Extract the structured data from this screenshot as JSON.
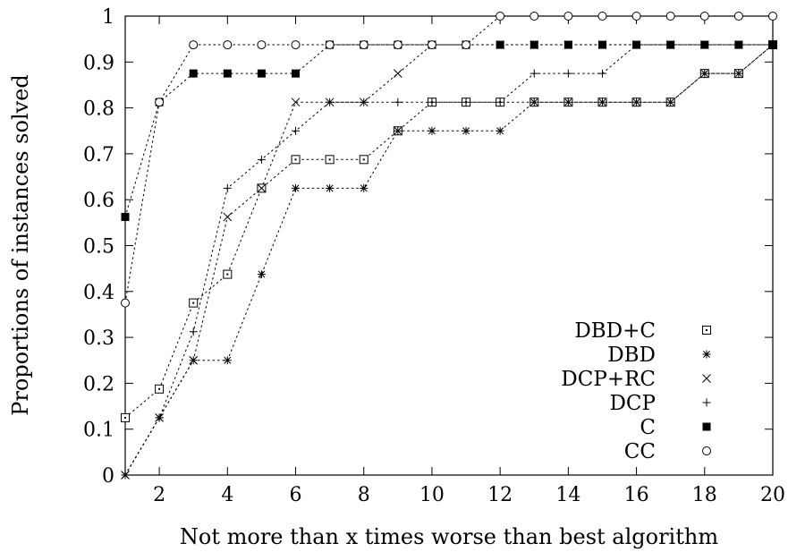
{
  "chart_data": {
    "type": "line",
    "title": "",
    "xlabel": "Not more than x times worse than best algorithm",
    "ylabel": "Proportions of instances solved",
    "xlim": [
      1,
      20
    ],
    "ylim": [
      0,
      1
    ],
    "x_ticks": [
      2,
      4,
      6,
      8,
      10,
      12,
      14,
      16,
      18,
      20
    ],
    "x_tick_labels": [
      "2",
      "4",
      "6",
      "8",
      "10",
      "12",
      "14",
      "16",
      "18",
      "20"
    ],
    "y_ticks": [
      0,
      0.1,
      0.2,
      0.3,
      0.4,
      0.5,
      0.6,
      0.7,
      0.8,
      0.9,
      1
    ],
    "y_tick_labels": [
      "0",
      "0.1",
      "0.2",
      "0.3",
      "0.4",
      "0.5",
      "0.6",
      "0.7",
      "0.8",
      "0.9",
      "1"
    ],
    "grid": false,
    "legend_position": "bottom-right",
    "x": [
      1,
      2,
      3,
      4,
      5,
      6,
      7,
      8,
      9,
      10,
      11,
      12,
      13,
      14,
      15,
      16,
      17,
      18,
      19,
      20
    ],
    "series": [
      {
        "name": "DBD+C",
        "marker": "square-dot",
        "values": [
          0.125,
          0.1875,
          0.375,
          0.4375,
          0.625,
          0.6875,
          0.6875,
          0.6875,
          0.75,
          0.8125,
          0.8125,
          0.8125,
          0.8125,
          0.8125,
          0.8125,
          0.8125,
          0.8125,
          0.875,
          0.875,
          0.9375
        ]
      },
      {
        "name": "DBD",
        "marker": "asterisk",
        "values": [
          0,
          0.125,
          0.25,
          0.25,
          0.4375,
          0.625,
          0.625,
          0.625,
          0.75,
          0.75,
          0.75,
          0.75,
          0.8125,
          0.8125,
          0.8125,
          0.8125,
          0.8125,
          0.875,
          0.875,
          0.9375
        ]
      },
      {
        "name": "DCP+RC",
        "marker": "cross",
        "values": [
          0,
          0.125,
          0.25,
          0.5625,
          0.625,
          0.8125,
          0.8125,
          0.8125,
          0.875,
          0.9375,
          0.9375,
          0.9375,
          0.9375,
          0.9375,
          0.9375,
          0.9375,
          0.9375,
          0.9375,
          0.9375,
          0.9375
        ]
      },
      {
        "name": "DCP",
        "marker": "plus",
        "values": [
          0,
          0.125,
          0.3125,
          0.625,
          0.6875,
          0.75,
          0.8125,
          0.8125,
          0.8125,
          0.8125,
          0.8125,
          0.8125,
          0.875,
          0.875,
          0.875,
          0.9375,
          0.9375,
          0.9375,
          0.9375,
          0.9375
        ]
      },
      {
        "name": "C",
        "marker": "filled-square",
        "values": [
          0.5625,
          0.8125,
          0.875,
          0.875,
          0.875,
          0.875,
          0.9375,
          0.9375,
          0.9375,
          0.9375,
          0.9375,
          0.9375,
          0.9375,
          0.9375,
          0.9375,
          0.9375,
          0.9375,
          0.9375,
          0.9375,
          0.9375
        ]
      },
      {
        "name": "CC",
        "marker": "circle",
        "values": [
          0.375,
          0.8125,
          0.9375,
          0.9375,
          0.9375,
          0.9375,
          0.9375,
          0.9375,
          0.9375,
          0.9375,
          0.9375,
          1,
          1,
          1,
          1,
          1,
          1,
          1,
          1,
          1
        ]
      }
    ],
    "colors": {
      "line": "#000000",
      "background": "#ffffff"
    }
  }
}
